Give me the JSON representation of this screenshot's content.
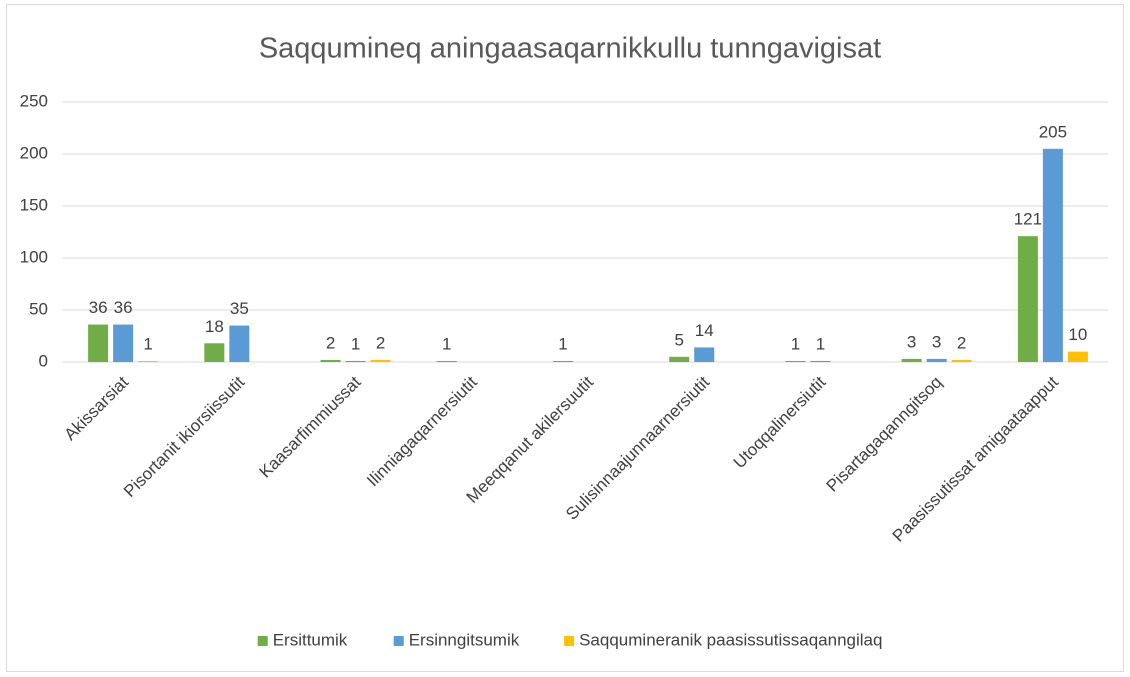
{
  "chart_data": {
    "type": "bar",
    "title": "Saqqumineq aningaasaqarnikkullu tunngavigisat",
    "categories": [
      "Akissarsiat",
      "Pisortanit ikiorsiissutit",
      "Kaasarfimmiussat",
      "Ilinniagaqarnersiutit",
      "Meeqqanut akilersuutit",
      "Sulisinnaajunnaarnersiutit",
      "Utoqqalinersiutit",
      "Pisartagaqanngitsoq",
      "Paasissutissat amigaataapput"
    ],
    "series": [
      {
        "name": "Ersittumik",
        "color": "#70ad47",
        "values": [
          36,
          18,
          2,
          1,
          1,
          5,
          1,
          3,
          121
        ]
      },
      {
        "name": "Ersinngitsumik",
        "color": "#5b9bd5",
        "values": [
          36,
          35,
          1,
          null,
          null,
          14,
          1,
          3,
          205
        ]
      },
      {
        "name": "Saqqumineranik paasissutissaqanngilaq",
        "color": "#ffc000",
        "values": [
          1,
          null,
          2,
          null,
          null,
          null,
          null,
          2,
          10
        ]
      }
    ],
    "ylim": [
      0,
      250
    ],
    "yticks": [
      0,
      50,
      100,
      150,
      200,
      250
    ],
    "grid": true,
    "legend": "bottom"
  }
}
